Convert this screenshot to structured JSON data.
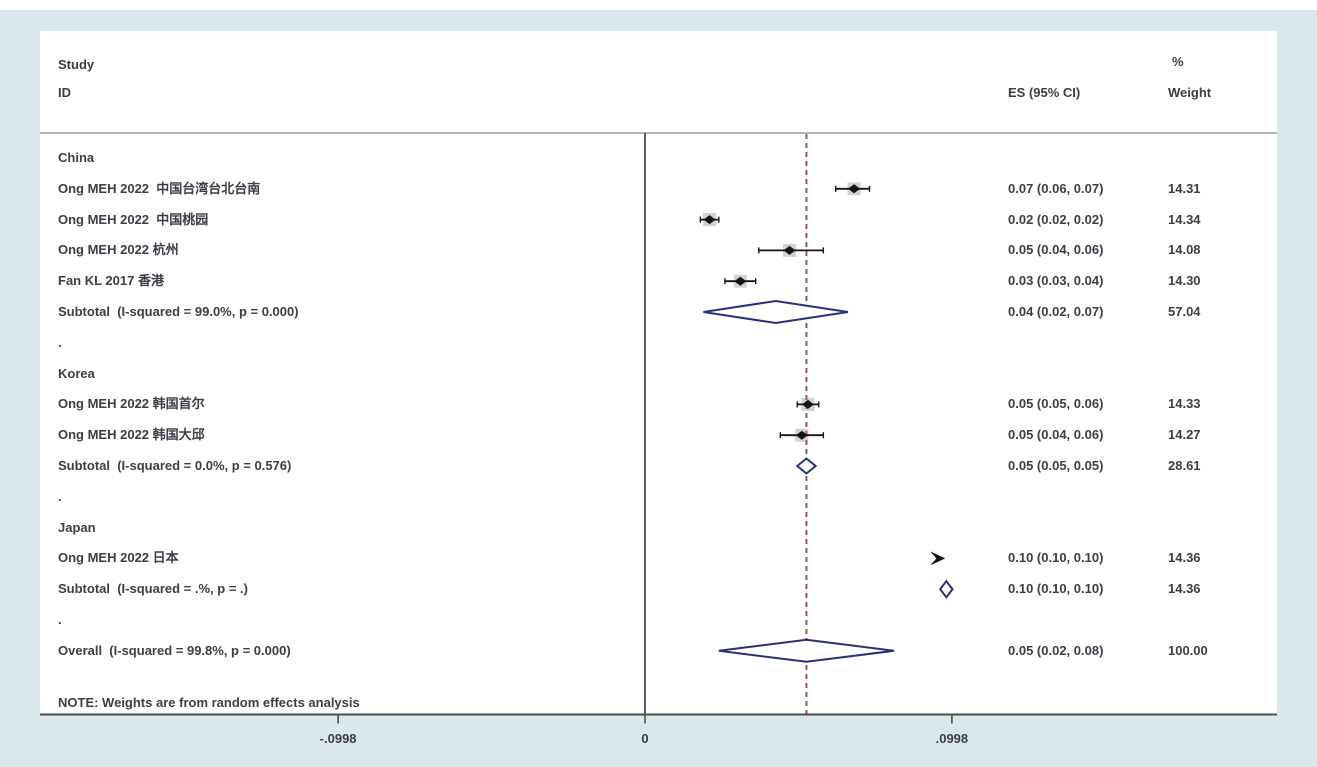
{
  "window": {
    "bg": "#dbe8eb",
    "panel_bg": "#ffffff"
  },
  "header": {
    "study_line1": "Study",
    "study_line2": "ID",
    "es_col": "ES (95% CI)",
    "pct": "%",
    "weight_col": "Weight"
  },
  "note": "NOTE: Weights are from random effects analysis",
  "colors": {
    "text": "#3d3d47",
    "diamond_stroke": "#2b3076",
    "dashed_line": "#a35252",
    "axis_line": "#4d4d4d",
    "separator_line": "#9b9b9b",
    "marker": "#141414",
    "halo": "#8a8a8a"
  },
  "chart_data": {
    "type": "forest",
    "title": "",
    "x_axis": {
      "tick_values": [
        -0.0998,
        0,
        0.0998
      ],
      "tick_labels": [
        "-.0998",
        "0",
        ".0998"
      ],
      "range": [
        -0.0998,
        0.0998
      ]
    },
    "null_line_value": 0,
    "pooled_line_value": 0.0525,
    "note": "NOTE: Weights are from random effects analysis",
    "groups": [
      {
        "name": "China",
        "studies": [
          {
            "label": "Ong MEH 2022  中国台湾台北台南",
            "es_display": "0.07 (0.06, 0.07)",
            "es": 0.07,
            "lo": 0.06,
            "hi": 0.07,
            "weight": "14.31",
            "draw": {
              "es": 0.068,
              "lo": 0.062,
              "hi": 0.073
            }
          },
          {
            "label": "Ong MEH 2022  中国桃园",
            "es_display": "0.02 (0.02, 0.02)",
            "es": 0.02,
            "lo": 0.02,
            "hi": 0.02,
            "weight": "14.34",
            "draw": {
              "es": 0.021,
              "lo": 0.018,
              "hi": 0.024
            }
          },
          {
            "label": "Ong MEH 2022 杭州",
            "es_display": "0.05 (0.04, 0.06)",
            "es": 0.05,
            "lo": 0.04,
            "hi": 0.06,
            "weight": "14.08",
            "draw": {
              "es": 0.047,
              "lo": 0.037,
              "hi": 0.058
            }
          },
          {
            "label": "Fan KL 2017 香港",
            "es_display": "0.03 (0.03, 0.04)",
            "es": 0.03,
            "lo": 0.03,
            "hi": 0.04,
            "weight": "14.30",
            "draw": {
              "es": 0.031,
              "lo": 0.026,
              "hi": 0.036
            }
          }
        ],
        "subtotal": {
          "label": "Subtotal  (I-squared = 99.0%, p = 0.000)",
          "es_display": "0.04 (0.02, 0.07)",
          "es": 0.04,
          "lo": 0.02,
          "hi": 0.07,
          "weight": "57.04",
          "draw": {
            "lo": 0.019,
            "hi": 0.066,
            "height": 22
          }
        }
      },
      {
        "name": "Korea",
        "studies": [
          {
            "label": "Ong MEH 2022 韩国首尔",
            "es_display": "0.05 (0.05, 0.06)",
            "es": 0.05,
            "lo": 0.05,
            "hi": 0.06,
            "weight": "14.33",
            "draw": {
              "es": 0.053,
              "lo": 0.0495,
              "hi": 0.0565
            }
          },
          {
            "label": "Ong MEH 2022 韩国大邱",
            "es_display": "0.05 (0.04, 0.06)",
            "es": 0.05,
            "lo": 0.04,
            "hi": 0.06,
            "weight": "14.27",
            "draw": {
              "es": 0.051,
              "lo": 0.044,
              "hi": 0.058
            }
          }
        ],
        "subtotal": {
          "label": "Subtotal  (I-squared = 0.0%, p = 0.576)",
          "es_display": "0.05 (0.05, 0.05)",
          "es": 0.05,
          "lo": 0.05,
          "hi": 0.05,
          "weight": "28.61",
          "draw": {
            "lo": 0.0495,
            "hi": 0.0555,
            "height": 15
          }
        }
      },
      {
        "name": "Japan",
        "studies": [
          {
            "label": "Ong MEH 2022 日本",
            "es_display": "0.10 (0.10, 0.10)",
            "es": 0.1,
            "lo": 0.1,
            "hi": 0.1,
            "weight": "14.36",
            "arrow": true,
            "draw": {
              "es": 0.097
            }
          }
        ],
        "subtotal": {
          "label": "Subtotal  (I-squared = .%, p = .)",
          "es_display": "0.10 (0.10, 0.10)",
          "es": 0.1,
          "lo": 0.1,
          "hi": 0.1,
          "weight": "14.36",
          "draw": {
            "lo": 0.096,
            "hi": 0.1,
            "height": 16
          }
        }
      }
    ],
    "overall": {
      "label": "Overall  (I-squared = 99.8%, p = 0.000)",
      "es_display": "0.05 (0.02, 0.08)",
      "es": 0.05,
      "lo": 0.02,
      "hi": 0.08,
      "weight": "100.00",
      "draw": {
        "lo": 0.024,
        "hi": 0.081,
        "height": 22
      }
    }
  }
}
